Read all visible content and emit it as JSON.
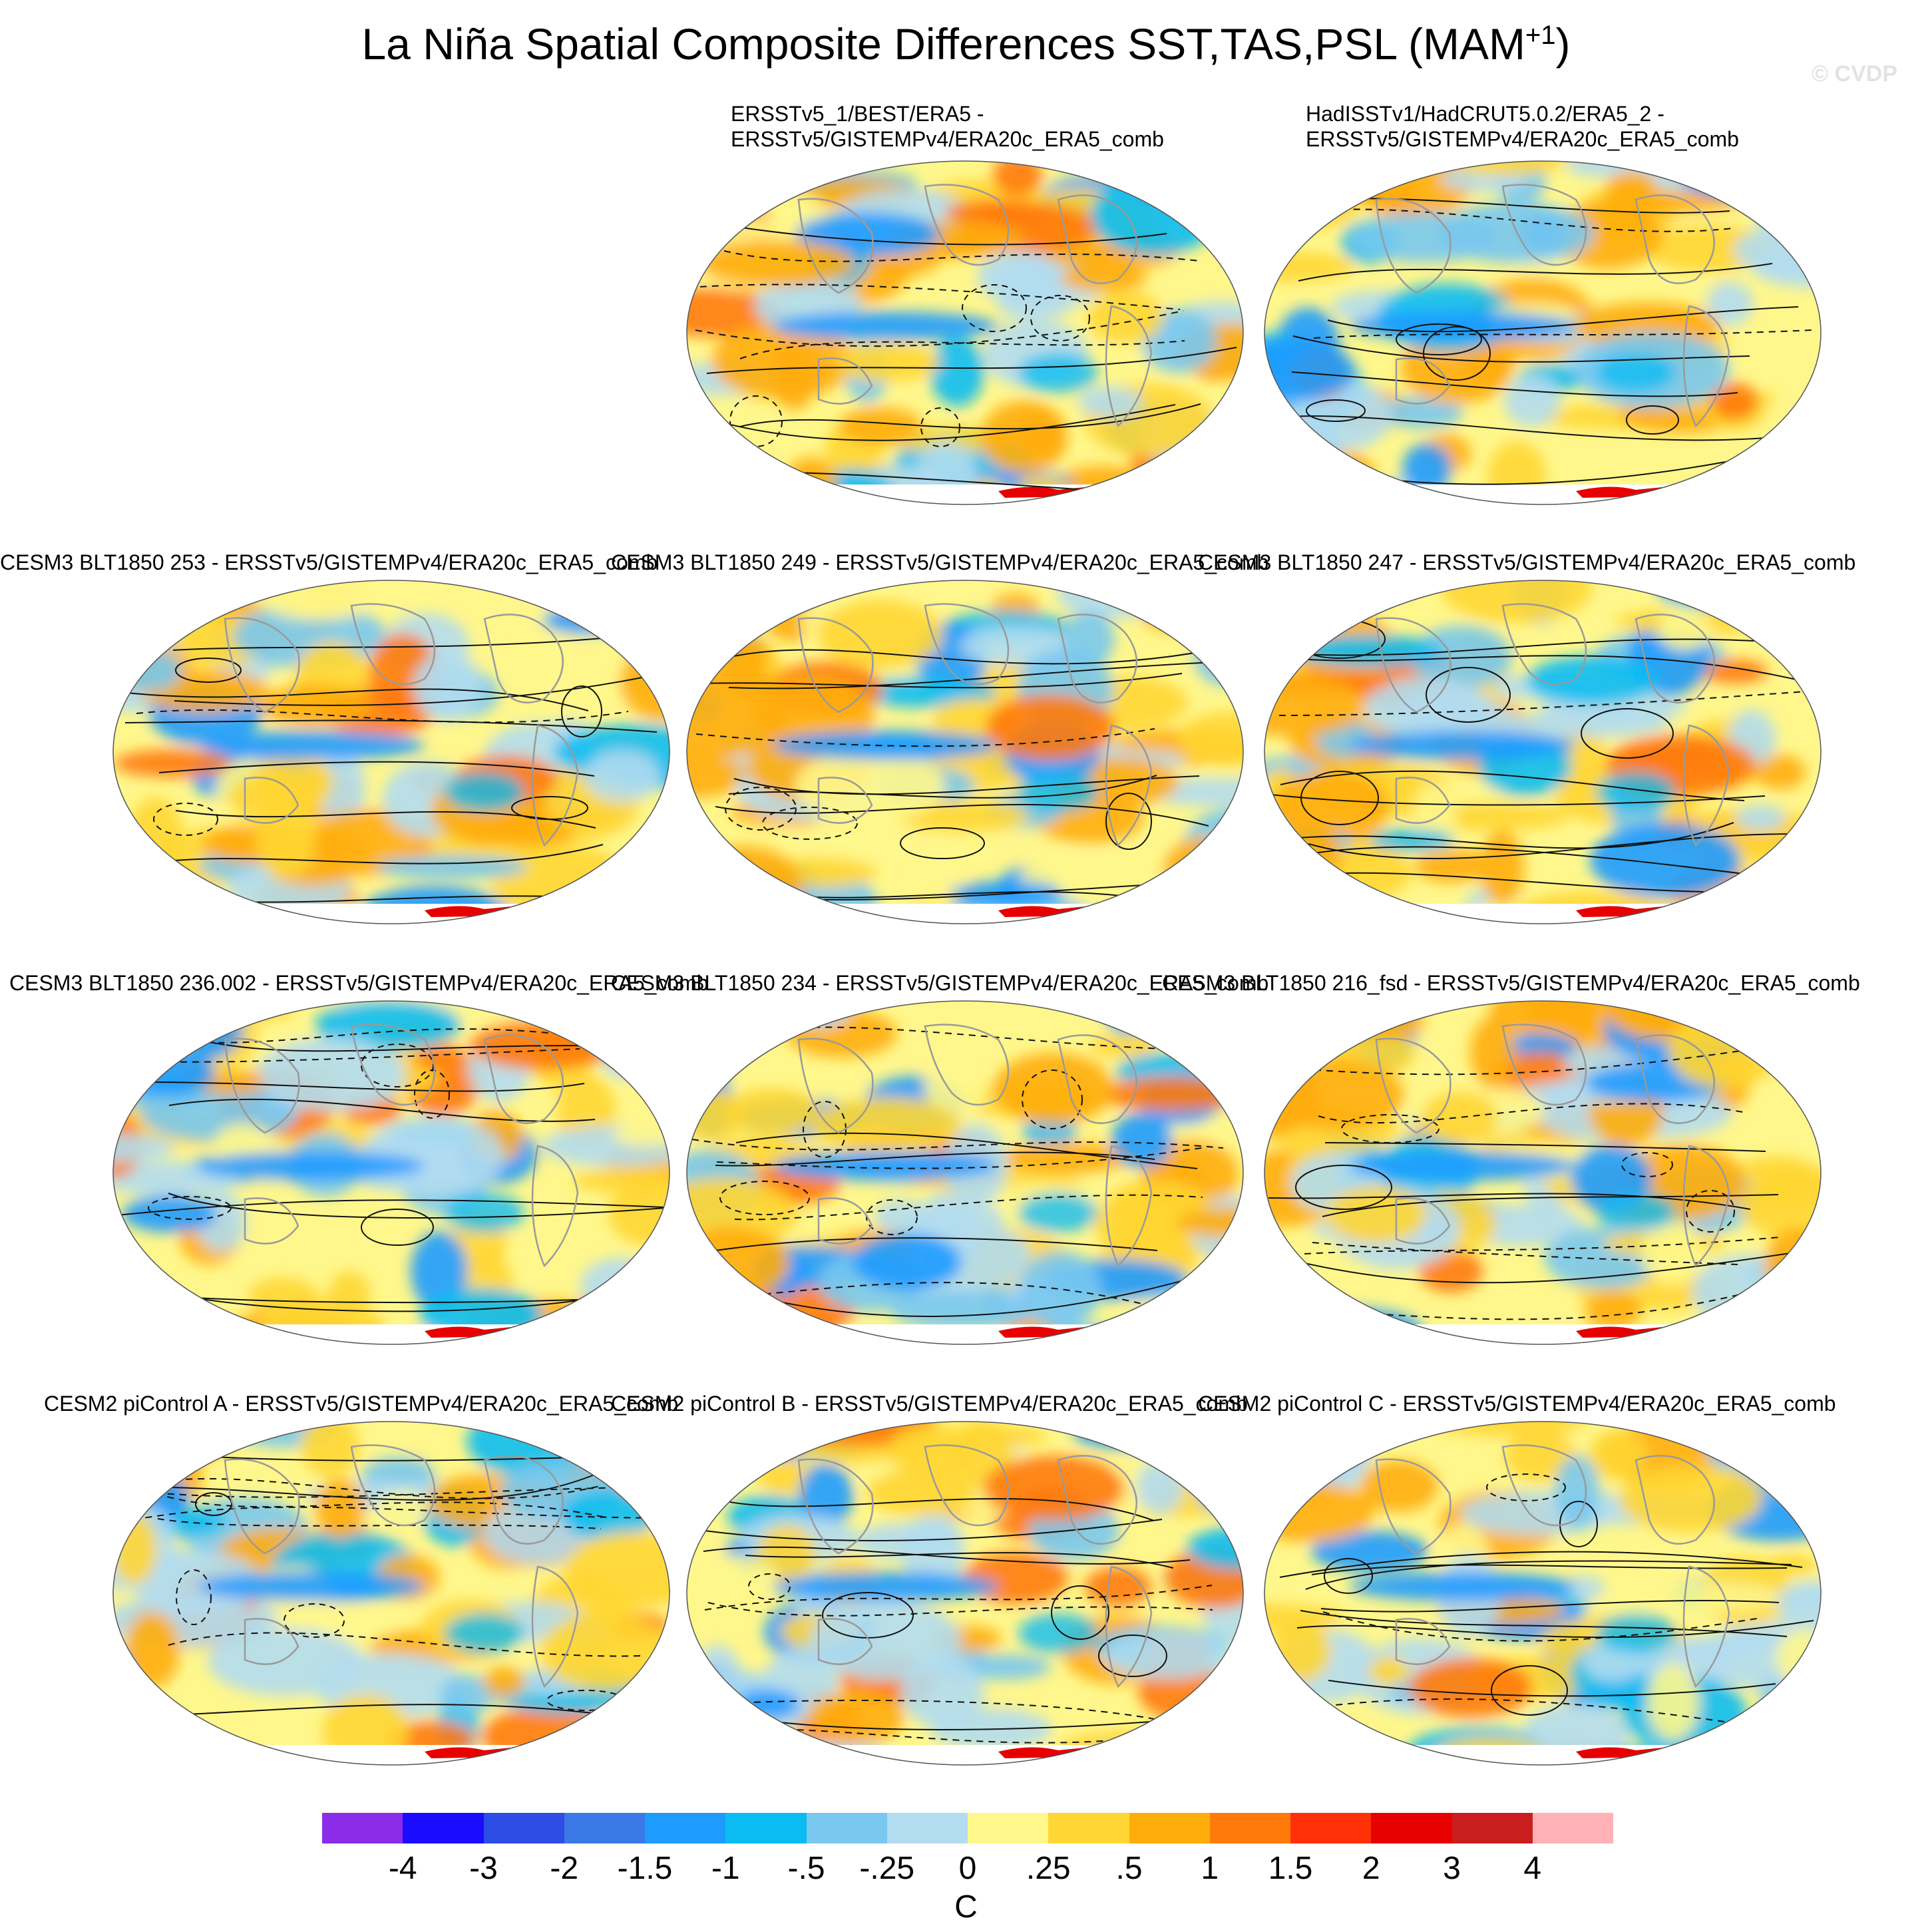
{
  "title": {
    "main": "La Niña Spatial Composite Differences SST,TAS,PSL (MAM",
    "superscript": "+1",
    "close": ")"
  },
  "watermark": "© CVDP",
  "panels": [
    {
      "line1": "ERSSTv5_1/BEST/ERA5 -",
      "line2": "ERSSTv5/GISTEMPv4/ERA20c_ERA5_comb"
    },
    {
      "line1": "HadISSTv1/HadCRUT5.0.2/ERA5_2 -",
      "line2": "ERSSTv5/GISTEMPv4/ERA20c_ERA5_comb"
    },
    {
      "line1": "CESM3 BLT1850 253 - ERSSTv5/GISTEMPv4/ERA20c_ERA5_comb"
    },
    {
      "line1": "CESM3 BLT1850 249 - ERSSTv5/GISTEMPv4/ERA20c_ERA5_comb"
    },
    {
      "line1": "CESM3 BLT1850 247 - ERSSTv5/GISTEMPv4/ERA20c_ERA5_comb"
    },
    {
      "line1": "CESM3 BLT1850 236.002 - ERSSTv5/GISTEMPv4/ERA20c_ERA5_comb"
    },
    {
      "line1": "CESM3 BLT1850 234 - ERSSTv5/GISTEMPv4/ERA20c_ERA5_comb"
    },
    {
      "line1": "CESM3 BLT1850 216_fsd - ERSSTv5/GISTEMPv4/ERA20c_ERA5_comb"
    },
    {
      "line1": "CESM2 piControl A - ERSSTv5/GISTEMPv4/ERA20c_ERA5_comb"
    },
    {
      "line1": "CESM2 piControl B - ERSSTv5/GISTEMPv4/ERA20c_ERA5_comb"
    },
    {
      "line1": "CESM2 piControl C - ERSSTv5/GISTEMPv4/ERA20c_ERA5_comb"
    }
  ],
  "colorbar": {
    "units": "C",
    "ticks": [
      "-4",
      "-3",
      "-2",
      "-1.5",
      "-1",
      "-.5",
      "-.25",
      "0",
      ".25",
      ".5",
      "1",
      "1.5",
      "2",
      "3",
      "4"
    ],
    "colors": [
      "#8a2ce8",
      "#1a0dff",
      "#2d4de6",
      "#3a79e6",
      "#1e9bff",
      "#0bbcf2",
      "#79c8f0",
      "#b3dcf0",
      "#fff78c",
      "#ffd633",
      "#ffad0a",
      "#ff7a0a",
      "#ff3005",
      "#e60000",
      "#c81e1e",
      "#ffb1b6"
    ]
  }
}
